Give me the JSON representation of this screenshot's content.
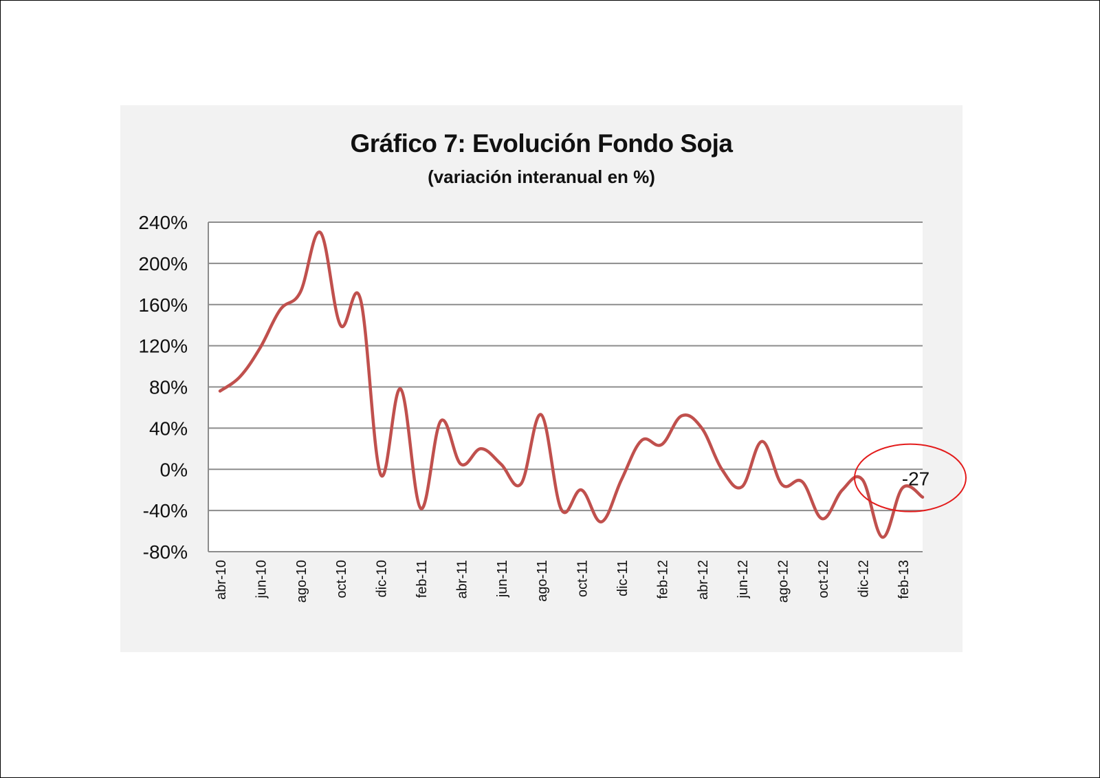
{
  "chart_data": {
    "type": "line",
    "title": "Gráfico 7: Evolución Fondo Soja",
    "subtitle": "(variación  interanual en %)",
    "xlabel": "",
    "ylabel": "",
    "ylim": [
      -80,
      240
    ],
    "y_ticks": [
      "240%",
      "200%",
      "160%",
      "120%",
      "80%",
      "40%",
      "0%",
      "-40%",
      "-80%"
    ],
    "y_tick_values": [
      240,
      200,
      160,
      120,
      80,
      40,
      0,
      -40,
      -80
    ],
    "x_tick_labels": [
      "abr-10",
      "jun-10",
      "ago-10",
      "oct-10",
      "dic-10",
      "feb-11",
      "abr-11",
      "jun-11",
      "ago-11",
      "oct-11",
      "dic-11",
      "feb-12",
      "abr-12",
      "jun-12",
      "ago-12",
      "oct-12",
      "dic-12",
      "feb-13"
    ],
    "grid": true,
    "legend": "none",
    "series": [
      {
        "color": "#c0504d",
        "x": [
          "abr-10",
          "may-10",
          "jun-10",
          "jul-10",
          "ago-10",
          "sep-10",
          "oct-10",
          "nov-10",
          "dic-10",
          "ene-11",
          "feb-11",
          "mar-11",
          "abr-11",
          "may-11",
          "jun-11",
          "jul-11",
          "ago-11",
          "sep-11",
          "oct-11",
          "nov-11",
          "dic-11",
          "ene-12",
          "feb-12",
          "mar-12",
          "abr-12",
          "may-12",
          "jun-12",
          "jul-12",
          "ago-12",
          "sep-12",
          "oct-12",
          "nov-12",
          "dic-12",
          "ene-13",
          "feb-13",
          "mar-13"
        ],
        "values": [
          76,
          90,
          118,
          155,
          172,
          230,
          140,
          165,
          -5,
          78,
          -38,
          47,
          5,
          20,
          5,
          -14,
          53,
          -39,
          -20,
          -51,
          -10,
          28,
          24,
          52,
          40,
          0,
          -17,
          27,
          -15,
          -12,
          -48,
          -20,
          -10,
          -66,
          -18,
          -27
        ]
      }
    ],
    "annotations": [
      {
        "text": "-27",
        "x": "mar-13",
        "y": -27,
        "highlight_color": "#e31b1b"
      }
    ]
  }
}
